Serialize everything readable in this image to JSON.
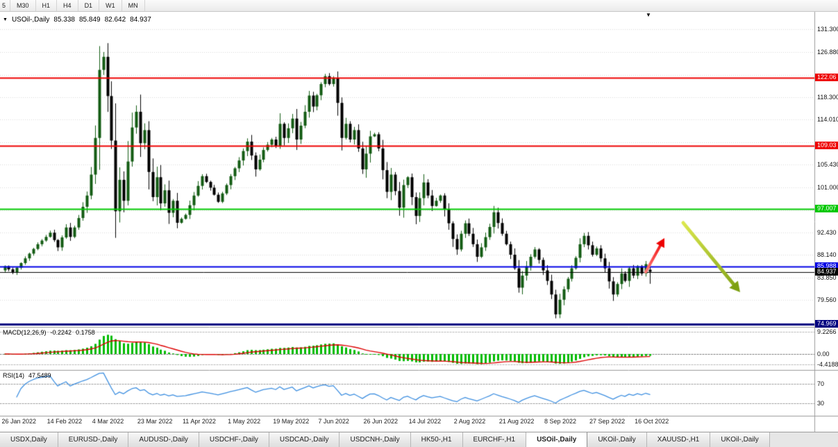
{
  "toolbar": {
    "timeframes": [
      "5",
      "M30",
      "H1",
      "H4",
      "D1",
      "W1",
      "MN"
    ],
    "active": "D1"
  },
  "chart": {
    "title": {
      "dropdown_glyph": "▼",
      "symbol": "USOil-,Daily",
      "open": "85.338",
      "high": "85.849",
      "low": "82.642",
      "close": "84.937"
    },
    "price_axis": {
      "plain_labels": [
        131.3,
        126.88,
        118.3,
        114.01,
        105.43,
        101.0,
        92.43,
        88.14,
        83.85,
        79.56
      ],
      "grid_prices": [
        131.3,
        126.88,
        122.59,
        118.3,
        114.01,
        109.72,
        105.43,
        101.0,
        96.71,
        92.43,
        88.14,
        83.85,
        79.56
      ],
      "view_top_price": 134.2,
      "view_bottom_price": 74.8
    },
    "levels": [
      {
        "price": 122.06,
        "label": "122.06",
        "color": "#ee0000",
        "width": 2,
        "type": "resistance-line"
      },
      {
        "price": 109.03,
        "label": "109.03",
        "color": "#ee0000",
        "width": 2,
        "type": "resistance-line"
      },
      {
        "price": 97.007,
        "label": "97.007",
        "color": "#00c800",
        "width": 2,
        "type": "support-line"
      },
      {
        "price": 85.988,
        "label": "85.988",
        "color": "#0000e6",
        "width": 2,
        "type": "support-line"
      },
      {
        "price": 84.937,
        "label": "84.937",
        "color": "#000000",
        "width": 1,
        "type": "current-price-line"
      },
      {
        "price": 74.969,
        "label": "74.969",
        "color": "#000080",
        "width": 3,
        "type": "support-line"
      }
    ],
    "shift_marker_glyph": "▼"
  },
  "chart_data": {
    "type": "candlestick",
    "symbol": "USOil-",
    "timeframe": "Daily",
    "candle_count": 158,
    "candles_per_label": 11,
    "session_high": 130.6,
    "session_low": 76.0,
    "last_ohlc": {
      "open": 85.338,
      "high": 85.849,
      "low": 82.642,
      "close": 84.937
    },
    "x_labels": [
      "26 Jan 2022",
      "14 Feb 2022",
      "4 Mar 2022",
      "23 Mar 2022",
      "11 Apr 2022",
      "1 May 2022",
      "19 May 2022",
      "7 Jun 2022",
      "26 Jun 2022",
      "14 Jul 2022",
      "2 Aug 2022",
      "21 Aug 2022",
      "8 Sep 2022",
      "27 Sep 2022",
      "16 Oct 2022"
    ],
    "price_waypoints": [
      [
        0,
        86.0
      ],
      [
        2,
        84.8
      ],
      [
        4,
        86.6
      ],
      [
        6,
        88.4
      ],
      [
        8,
        90.2
      ],
      [
        10,
        91.6
      ],
      [
        11,
        92.4
      ],
      [
        13,
        89.6
      ],
      [
        15,
        93.4
      ],
      [
        16,
        91.6
      ],
      [
        18,
        95.2
      ],
      [
        20,
        99.5
      ],
      [
        21,
        103.5
      ],
      [
        22,
        110.5
      ],
      [
        23,
        123.5
      ],
      [
        24,
        126.0
      ],
      [
        25,
        118.5
      ],
      [
        26,
        110.0
      ],
      [
        27,
        96.5
      ],
      [
        28,
        102.5
      ],
      [
        29,
        98.5
      ],
      [
        30,
        106.0
      ],
      [
        31,
        112.5
      ],
      [
        32,
        115.5
      ],
      [
        33,
        109.5
      ],
      [
        34,
        112.0
      ],
      [
        35,
        104.0
      ],
      [
        36,
        99.2
      ],
      [
        37,
        103.0
      ],
      [
        38,
        98.0
      ],
      [
        39,
        100.5
      ],
      [
        40,
        96.2
      ],
      [
        41,
        98.5
      ],
      [
        42,
        94.3
      ],
      [
        44,
        95.8
      ],
      [
        46,
        99.5
      ],
      [
        48,
        103.2
      ],
      [
        50,
        101.0
      ],
      [
        52,
        98.3
      ],
      [
        54,
        101.5
      ],
      [
        55,
        103.2
      ],
      [
        57,
        106.2
      ],
      [
        59,
        109.8
      ],
      [
        61,
        104.5
      ],
      [
        63,
        108.2
      ],
      [
        65,
        110.2
      ],
      [
        66,
        109.0
      ],
      [
        67,
        113.2
      ],
      [
        68,
        110.5
      ],
      [
        70,
        114.2
      ],
      [
        71,
        110.2
      ],
      [
        73,
        115.5
      ],
      [
        74,
        118.6
      ],
      [
        75,
        116.5
      ],
      [
        77,
        120.8
      ],
      [
        78,
        122.3
      ],
      [
        79,
        120.8
      ],
      [
        80,
        122.0
      ],
      [
        81,
        117.2
      ],
      [
        82,
        110.5
      ],
      [
        83,
        113.2
      ],
      [
        84,
        110.2
      ],
      [
        85,
        112.0
      ],
      [
        86,
        108.5
      ],
      [
        87,
        104.5
      ],
      [
        88,
        107.5
      ],
      [
        89,
        110.8
      ],
      [
        90,
        111.2
      ],
      [
        91,
        108.5
      ],
      [
        93,
        100.2
      ],
      [
        94,
        103.5
      ],
      [
        96,
        97.2
      ],
      [
        97,
        101.5
      ],
      [
        98,
        103.0
      ],
      [
        99,
        99.2
      ],
      [
        100,
        95.6
      ],
      [
        101,
        99.0
      ],
      [
        102,
        102.0
      ],
      [
        103,
        99.5
      ],
      [
        104,
        97.5
      ],
      [
        106,
        99.5
      ],
      [
        108,
        94.2
      ],
      [
        109,
        91.2
      ],
      [
        110,
        89.2
      ],
      [
        111,
        92.2
      ],
      [
        112,
        94.2
      ],
      [
        114,
        90.2
      ],
      [
        115,
        87.8
      ],
      [
        116,
        89.6
      ],
      [
        118,
        93.5
      ],
      [
        119,
        96.3
      ],
      [
        121,
        92.2
      ],
      [
        123,
        88.2
      ],
      [
        124,
        85.6
      ],
      [
        125,
        81.9
      ],
      [
        126,
        84.2
      ],
      [
        128,
        87.8
      ],
      [
        129,
        89.2
      ],
      [
        131,
        85.2
      ],
      [
        132,
        83.2
      ],
      [
        133,
        80.6
      ],
      [
        134,
        76.8
      ],
      [
        135,
        79.6
      ],
      [
        137,
        83.6
      ],
      [
        139,
        87.6
      ],
      [
        140,
        90.2
      ],
      [
        141,
        91.8
      ],
      [
        143,
        88.2
      ],
      [
        144,
        89.4
      ],
      [
        146,
        85.6
      ],
      [
        148,
        80.6
      ],
      [
        149,
        82.6
      ],
      [
        150,
        84.6
      ],
      [
        151,
        83.2
      ],
      [
        152,
        85.6
      ],
      [
        153,
        84.2
      ],
      [
        154,
        86.0
      ],
      [
        155,
        84.6
      ],
      [
        156,
        86.4
      ],
      [
        157,
        84.937
      ]
    ]
  },
  "macd": {
    "label": "MACD(12,26,9)",
    "value_main": "-0.2242",
    "value_signal": "0.1758",
    "params": [
      12,
      26,
      9
    ],
    "axis": [
      {
        "text": "9.2266",
        "v": 9.2266
      },
      {
        "text": "0.00",
        "v": 0
      },
      {
        "text": "-4.4188",
        "v": -4.4188
      }
    ],
    "histogram_color": "#00bb00",
    "signal_color": "#dd0000"
  },
  "rsi": {
    "label": "RSI(14)",
    "value": "47.5489",
    "period": 14,
    "axis": [
      {
        "text": "70",
        "v": 70
      },
      {
        "text": "30",
        "v": 30
      }
    ],
    "line_color": "#3e8fe0"
  },
  "annotations": [
    {
      "name": "up-trend-arrow",
      "color_start": "#ff7a7a",
      "color_end": "#ee0000",
      "from": [
        930,
        392
      ],
      "to": [
        957,
        343
      ],
      "width": 4,
      "head": 11
    },
    {
      "name": "down-trend-arrow",
      "color_start": "#dce84e",
      "color_end": "#7da012",
      "from": [
        984,
        321
      ],
      "to": [
        1066,
        421
      ],
      "width": 5,
      "head": 13
    }
  ],
  "tabs": [
    {
      "label": "USDX,Daily",
      "active": false
    },
    {
      "label": "EURUSD-,Daily",
      "active": false
    },
    {
      "label": "AUDUSD-,Daily",
      "active": false
    },
    {
      "label": "USDCHF-,Daily",
      "active": false
    },
    {
      "label": "USDCAD-,Daily",
      "active": false
    },
    {
      "label": "USDCNH-,Daily",
      "active": false
    },
    {
      "label": "HK50-,H1",
      "active": false
    },
    {
      "label": "EURCHF-,H1",
      "active": false
    },
    {
      "label": "USOil-,Daily",
      "active": true
    },
    {
      "label": "UKOil-,Daily",
      "active": false
    },
    {
      "label": "XAUUSD-,H1",
      "active": false
    },
    {
      "label": "UKOil-,Daily",
      "active": false
    }
  ]
}
